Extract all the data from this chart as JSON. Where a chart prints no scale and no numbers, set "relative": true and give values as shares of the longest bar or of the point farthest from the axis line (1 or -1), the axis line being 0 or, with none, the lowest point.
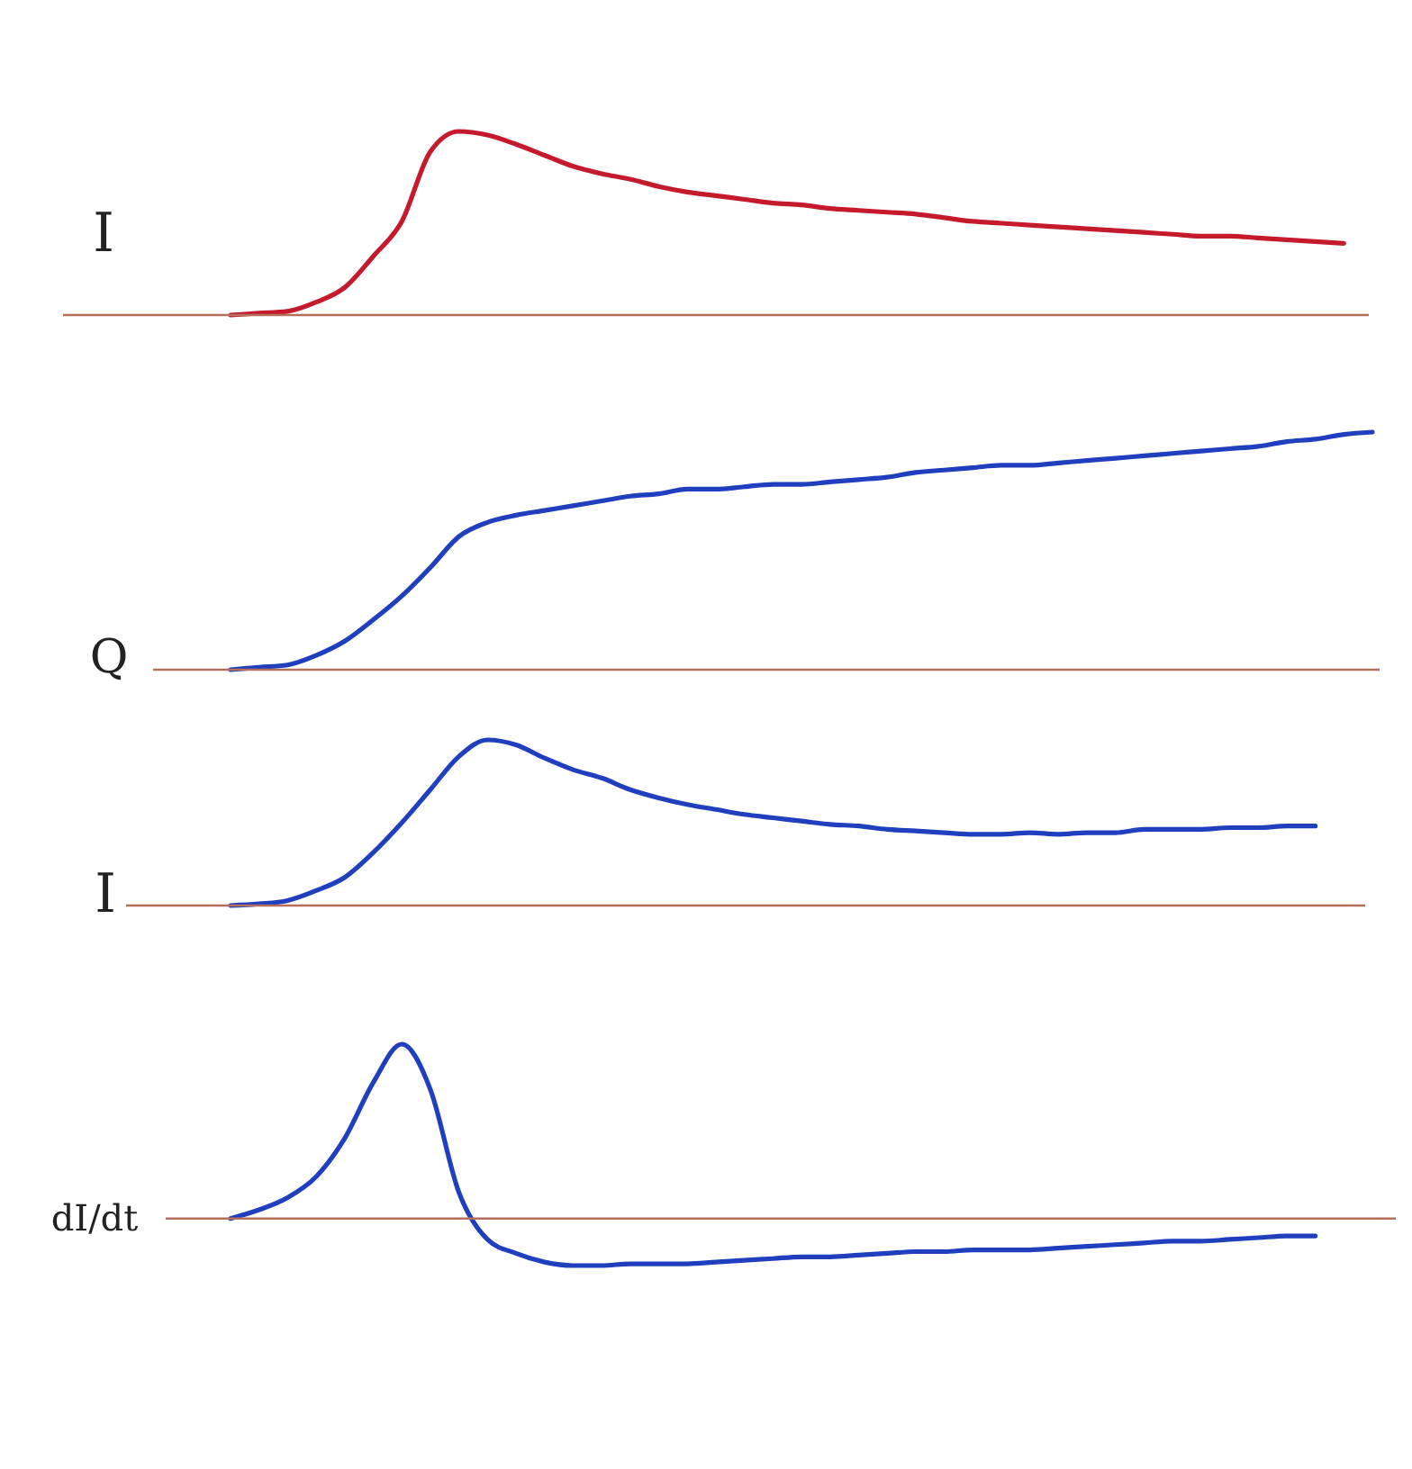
{
  "chart_data": [
    {
      "type": "line",
      "ylabel": "I",
      "relative": true,
      "categories": [
        null,
        null,
        null,
        null,
        null,
        null,
        null,
        null,
        null,
        null,
        null,
        null,
        null,
        null,
        null,
        null,
        null,
        null,
        null,
        null,
        null,
        null,
        null,
        null,
        null,
        null,
        null,
        null,
        null,
        null,
        null,
        null,
        null,
        null,
        null,
        null,
        null,
        null,
        null,
        null,
        null
      ],
      "series": [
        {
          "color": "#c41a2c",
          "values": [
            0,
            0.01,
            0.02,
            0.07,
            0.15,
            0.32,
            0.51,
            0.89,
            1.0,
            0.98,
            0.93,
            0.87,
            0.81,
            0.77,
            0.74,
            0.7,
            0.67,
            0.65,
            0.63,
            0.61,
            0.6,
            0.58,
            0.57,
            0.56,
            0.55,
            0.53,
            0.51,
            0.5,
            0.49,
            0.48,
            0.47,
            0.46,
            0.45,
            0.44,
            0.43,
            0.43,
            0.42,
            0.41,
            0.4,
            0.39,
            null
          ]
        }
      ],
      "ref_lines": [
        {
          "axis": "y",
          "value": 0,
          "color": "#b5705c"
        }
      ]
    },
    {
      "type": "line",
      "ylabel": "Q",
      "relative": true,
      "categories": [
        null,
        null,
        null,
        null,
        null,
        null,
        null,
        null,
        null,
        null,
        null,
        null,
        null,
        null,
        null,
        null,
        null,
        null,
        null,
        null,
        null,
        null,
        null,
        null,
        null,
        null,
        null,
        null,
        null,
        null,
        null,
        null,
        null,
        null,
        null,
        null,
        null,
        null,
        null,
        null,
        null
      ],
      "series": [
        {
          "color": "#1f3fbf",
          "values": [
            0,
            0.01,
            0.02,
            0.06,
            0.12,
            0.21,
            0.31,
            0.43,
            0.56,
            0.62,
            0.65,
            0.67,
            0.69,
            0.71,
            0.73,
            0.74,
            0.76,
            0.76,
            0.77,
            0.78,
            0.78,
            0.79,
            0.8,
            0.81,
            0.83,
            0.84,
            0.85,
            0.86,
            0.86,
            0.87,
            0.88,
            0.89,
            0.9,
            0.91,
            0.92,
            0.93,
            0.94,
            0.96,
            0.97,
            0.99,
            1.0
          ]
        }
      ],
      "ref_lines": [
        {
          "axis": "y",
          "value": 0,
          "color": "#b5705c"
        }
      ]
    },
    {
      "type": "line",
      "ylabel": "I",
      "relative": true,
      "categories": [
        null,
        null,
        null,
        null,
        null,
        null,
        null,
        null,
        null,
        null,
        null,
        null,
        null,
        null,
        null,
        null,
        null,
        null,
        null,
        null,
        null,
        null,
        null,
        null,
        null,
        null,
        null,
        null,
        null,
        null,
        null,
        null,
        null,
        null,
        null,
        null,
        null,
        null,
        null,
        null,
        null
      ],
      "series": [
        {
          "color": "#1f3fbf",
          "values": [
            0,
            0.01,
            0.03,
            0.09,
            0.17,
            0.32,
            0.5,
            0.7,
            0.9,
            1.0,
            0.97,
            0.89,
            0.82,
            0.77,
            0.7,
            0.65,
            0.61,
            0.58,
            0.55,
            0.53,
            0.51,
            0.49,
            0.48,
            0.46,
            0.45,
            0.44,
            0.43,
            0.43,
            0.44,
            0.43,
            0.44,
            0.44,
            0.46,
            0.46,
            0.46,
            0.47,
            0.47,
            0.48,
            0.48,
            null,
            null
          ]
        }
      ],
      "ref_lines": [
        {
          "axis": "y",
          "value": 0,
          "color": "#b5705c"
        }
      ]
    },
    {
      "type": "line",
      "ylabel": "dI/dt",
      "relative": true,
      "categories": [
        null,
        null,
        null,
        null,
        null,
        null,
        null,
        null,
        null,
        null,
        null,
        null,
        null,
        null,
        null,
        null,
        null,
        null,
        null,
        null,
        null,
        null,
        null,
        null,
        null,
        null,
        null,
        null,
        null,
        null,
        null,
        null,
        null,
        null,
        null,
        null,
        null,
        null,
        null,
        null,
        null
      ],
      "series": [
        {
          "color": "#1f3fbf",
          "values": [
            0,
            0.05,
            0.12,
            0.24,
            0.46,
            0.78,
            1.0,
            0.74,
            0.15,
            -0.12,
            -0.2,
            -0.25,
            -0.27,
            -0.27,
            -0.26,
            -0.26,
            -0.26,
            -0.25,
            -0.24,
            -0.23,
            -0.22,
            -0.22,
            -0.21,
            -0.2,
            -0.19,
            -0.19,
            -0.18,
            -0.18,
            -0.18,
            -0.17,
            -0.16,
            -0.15,
            -0.14,
            -0.13,
            -0.13,
            -0.12,
            -0.11,
            -0.1,
            -0.1,
            null,
            null
          ]
        }
      ],
      "ref_lines": [
        {
          "axis": "y",
          "value": 0,
          "color": "#b5705c"
        }
      ]
    }
  ]
}
